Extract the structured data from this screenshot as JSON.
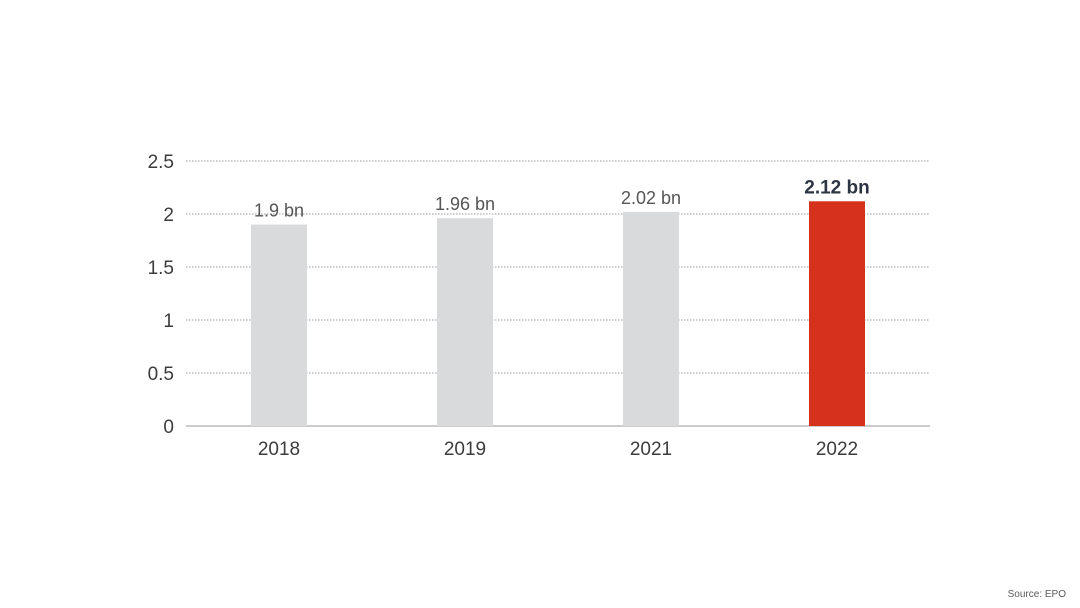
{
  "chart_data": {
    "type": "bar",
    "categories": [
      "2018",
      "2019",
      "2021",
      "2022"
    ],
    "values": [
      1.9,
      1.96,
      2.02,
      2.12
    ],
    "data_labels": [
      "1.9 bn",
      "1.96 bn",
      "2.02 bn",
      "2.12 bn"
    ],
    "y_ticks": [
      "0",
      "0.5",
      "1",
      "1.5",
      "2",
      "2.5"
    ],
    "y_tick_values": [
      0,
      0.5,
      1,
      1.5,
      2,
      2.5
    ],
    "ylim": [
      0,
      2.5
    ],
    "grid": true,
    "legend": "none",
    "highlight_index": 3,
    "colors": {
      "bar": "#d9dadb",
      "highlight": "#d6311c",
      "grid": "#9a9a9a",
      "axis_text": "#3c3c3c",
      "label_text": "#555555",
      "highlight_label": "#2d3442"
    }
  },
  "source": "Source: EPO"
}
